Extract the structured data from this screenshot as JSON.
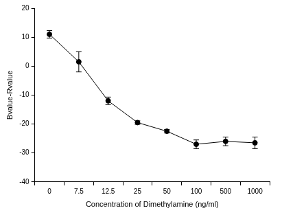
{
  "chart_data": {
    "type": "line",
    "x_label": "Concentration of Dimethylamine (ng/ml)",
    "y_label": "Bvalue-Rvalue",
    "categories": [
      "0",
      "7.5",
      "12.5",
      "25",
      "50",
      "100",
      "500",
      "1000"
    ],
    "values": [
      11,
      1.5,
      -12,
      -19.5,
      -22.5,
      -27,
      -26,
      -26.5
    ],
    "errors": [
      1.3,
      3.5,
      1.3,
      0.6,
      0.6,
      1.5,
      1.5,
      2
    ],
    "color": "#000000",
    "marker": "circle",
    "line_style": "solid",
    "ylim": [
      -40,
      20
    ],
    "yticks": [
      -40,
      -30,
      -20,
      -10,
      0,
      10,
      20
    ],
    "grid": false
  }
}
